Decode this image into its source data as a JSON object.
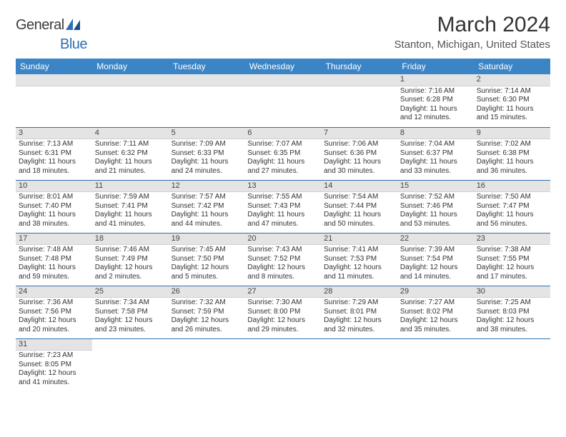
{
  "brand": {
    "part1": "General",
    "part2": "Blue"
  },
  "title": "March 2024",
  "location": "Stanton, Michigan, United States",
  "colors": {
    "header_bg": "#3b85c6",
    "header_text": "#ffffff",
    "row_divider": "#2f6fb3",
    "daynum_bg": "#e4e4e4",
    "logo_blue": "#2f6fb3",
    "text": "#333333"
  },
  "weekdays": [
    "Sunday",
    "Monday",
    "Tuesday",
    "Wednesday",
    "Thursday",
    "Friday",
    "Saturday"
  ],
  "weeks": [
    [
      {
        "day": "",
        "sunrise": "",
        "sunset": "",
        "daylight": ""
      },
      {
        "day": "",
        "sunrise": "",
        "sunset": "",
        "daylight": ""
      },
      {
        "day": "",
        "sunrise": "",
        "sunset": "",
        "daylight": ""
      },
      {
        "day": "",
        "sunrise": "",
        "sunset": "",
        "daylight": ""
      },
      {
        "day": "",
        "sunrise": "",
        "sunset": "",
        "daylight": ""
      },
      {
        "day": "1",
        "sunrise": "Sunrise: 7:16 AM",
        "sunset": "Sunset: 6:28 PM",
        "daylight": "Daylight: 11 hours and 12 minutes."
      },
      {
        "day": "2",
        "sunrise": "Sunrise: 7:14 AM",
        "sunset": "Sunset: 6:30 PM",
        "daylight": "Daylight: 11 hours and 15 minutes."
      }
    ],
    [
      {
        "day": "3",
        "sunrise": "Sunrise: 7:13 AM",
        "sunset": "Sunset: 6:31 PM",
        "daylight": "Daylight: 11 hours and 18 minutes."
      },
      {
        "day": "4",
        "sunrise": "Sunrise: 7:11 AM",
        "sunset": "Sunset: 6:32 PM",
        "daylight": "Daylight: 11 hours and 21 minutes."
      },
      {
        "day": "5",
        "sunrise": "Sunrise: 7:09 AM",
        "sunset": "Sunset: 6:33 PM",
        "daylight": "Daylight: 11 hours and 24 minutes."
      },
      {
        "day": "6",
        "sunrise": "Sunrise: 7:07 AM",
        "sunset": "Sunset: 6:35 PM",
        "daylight": "Daylight: 11 hours and 27 minutes."
      },
      {
        "day": "7",
        "sunrise": "Sunrise: 7:06 AM",
        "sunset": "Sunset: 6:36 PM",
        "daylight": "Daylight: 11 hours and 30 minutes."
      },
      {
        "day": "8",
        "sunrise": "Sunrise: 7:04 AM",
        "sunset": "Sunset: 6:37 PM",
        "daylight": "Daylight: 11 hours and 33 minutes."
      },
      {
        "day": "9",
        "sunrise": "Sunrise: 7:02 AM",
        "sunset": "Sunset: 6:38 PM",
        "daylight": "Daylight: 11 hours and 36 minutes."
      }
    ],
    [
      {
        "day": "10",
        "sunrise": "Sunrise: 8:01 AM",
        "sunset": "Sunset: 7:40 PM",
        "daylight": "Daylight: 11 hours and 38 minutes."
      },
      {
        "day": "11",
        "sunrise": "Sunrise: 7:59 AM",
        "sunset": "Sunset: 7:41 PM",
        "daylight": "Daylight: 11 hours and 41 minutes."
      },
      {
        "day": "12",
        "sunrise": "Sunrise: 7:57 AM",
        "sunset": "Sunset: 7:42 PM",
        "daylight": "Daylight: 11 hours and 44 minutes."
      },
      {
        "day": "13",
        "sunrise": "Sunrise: 7:55 AM",
        "sunset": "Sunset: 7:43 PM",
        "daylight": "Daylight: 11 hours and 47 minutes."
      },
      {
        "day": "14",
        "sunrise": "Sunrise: 7:54 AM",
        "sunset": "Sunset: 7:44 PM",
        "daylight": "Daylight: 11 hours and 50 minutes."
      },
      {
        "day": "15",
        "sunrise": "Sunrise: 7:52 AM",
        "sunset": "Sunset: 7:46 PM",
        "daylight": "Daylight: 11 hours and 53 minutes."
      },
      {
        "day": "16",
        "sunrise": "Sunrise: 7:50 AM",
        "sunset": "Sunset: 7:47 PM",
        "daylight": "Daylight: 11 hours and 56 minutes."
      }
    ],
    [
      {
        "day": "17",
        "sunrise": "Sunrise: 7:48 AM",
        "sunset": "Sunset: 7:48 PM",
        "daylight": "Daylight: 11 hours and 59 minutes."
      },
      {
        "day": "18",
        "sunrise": "Sunrise: 7:46 AM",
        "sunset": "Sunset: 7:49 PM",
        "daylight": "Daylight: 12 hours and 2 minutes."
      },
      {
        "day": "19",
        "sunrise": "Sunrise: 7:45 AM",
        "sunset": "Sunset: 7:50 PM",
        "daylight": "Daylight: 12 hours and 5 minutes."
      },
      {
        "day": "20",
        "sunrise": "Sunrise: 7:43 AM",
        "sunset": "Sunset: 7:52 PM",
        "daylight": "Daylight: 12 hours and 8 minutes."
      },
      {
        "day": "21",
        "sunrise": "Sunrise: 7:41 AM",
        "sunset": "Sunset: 7:53 PM",
        "daylight": "Daylight: 12 hours and 11 minutes."
      },
      {
        "day": "22",
        "sunrise": "Sunrise: 7:39 AM",
        "sunset": "Sunset: 7:54 PM",
        "daylight": "Daylight: 12 hours and 14 minutes."
      },
      {
        "day": "23",
        "sunrise": "Sunrise: 7:38 AM",
        "sunset": "Sunset: 7:55 PM",
        "daylight": "Daylight: 12 hours and 17 minutes."
      }
    ],
    [
      {
        "day": "24",
        "sunrise": "Sunrise: 7:36 AM",
        "sunset": "Sunset: 7:56 PM",
        "daylight": "Daylight: 12 hours and 20 minutes."
      },
      {
        "day": "25",
        "sunrise": "Sunrise: 7:34 AM",
        "sunset": "Sunset: 7:58 PM",
        "daylight": "Daylight: 12 hours and 23 minutes."
      },
      {
        "day": "26",
        "sunrise": "Sunrise: 7:32 AM",
        "sunset": "Sunset: 7:59 PM",
        "daylight": "Daylight: 12 hours and 26 minutes."
      },
      {
        "day": "27",
        "sunrise": "Sunrise: 7:30 AM",
        "sunset": "Sunset: 8:00 PM",
        "daylight": "Daylight: 12 hours and 29 minutes."
      },
      {
        "day": "28",
        "sunrise": "Sunrise: 7:29 AM",
        "sunset": "Sunset: 8:01 PM",
        "daylight": "Daylight: 12 hours and 32 minutes."
      },
      {
        "day": "29",
        "sunrise": "Sunrise: 7:27 AM",
        "sunset": "Sunset: 8:02 PM",
        "daylight": "Daylight: 12 hours and 35 minutes."
      },
      {
        "day": "30",
        "sunrise": "Sunrise: 7:25 AM",
        "sunset": "Sunset: 8:03 PM",
        "daylight": "Daylight: 12 hours and 38 minutes."
      }
    ],
    [
      {
        "day": "31",
        "sunrise": "Sunrise: 7:23 AM",
        "sunset": "Sunset: 8:05 PM",
        "daylight": "Daylight: 12 hours and 41 minutes."
      },
      {
        "day": "",
        "sunrise": "",
        "sunset": "",
        "daylight": ""
      },
      {
        "day": "",
        "sunrise": "",
        "sunset": "",
        "daylight": ""
      },
      {
        "day": "",
        "sunrise": "",
        "sunset": "",
        "daylight": ""
      },
      {
        "day": "",
        "sunrise": "",
        "sunset": "",
        "daylight": ""
      },
      {
        "day": "",
        "sunrise": "",
        "sunset": "",
        "daylight": ""
      },
      {
        "day": "",
        "sunrise": "",
        "sunset": "",
        "daylight": ""
      }
    ]
  ]
}
